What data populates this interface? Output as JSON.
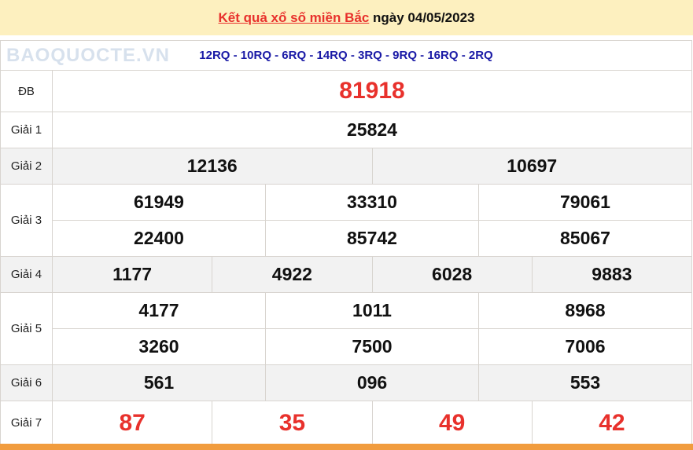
{
  "header": {
    "title_link": "Kết quả xổ số miền Bắc",
    "title_rest": " ngày 04/05/2023"
  },
  "codes": "12RQ - 10RQ - 6RQ - 14RQ - 3RQ - 9RQ - 16RQ - 2RQ",
  "prizes": {
    "db": {
      "label": "ĐB",
      "values": [
        "81918"
      ]
    },
    "g1": {
      "label": "Giải 1",
      "values": [
        "25824"
      ]
    },
    "g2": {
      "label": "Giải 2",
      "values": [
        "12136",
        "10697"
      ]
    },
    "g3": {
      "label": "Giải 3",
      "values": [
        "61949",
        "33310",
        "79061",
        "22400",
        "85742",
        "85067"
      ]
    },
    "g4": {
      "label": "Giải 4",
      "values": [
        "1177",
        "4922",
        "6028",
        "9883"
      ]
    },
    "g5": {
      "label": "Giải 5",
      "values": [
        "4177",
        "1011",
        "8968",
        "3260",
        "7500",
        "7006"
      ]
    },
    "g6": {
      "label": "Giải 6",
      "values": [
        "561",
        "096",
        "553"
      ]
    },
    "g7": {
      "label": "Giải 7",
      "values": [
        "87",
        "35",
        "49",
        "42"
      ]
    }
  },
  "watermark": "BAOQUOCTE.VN",
  "colors": {
    "accent": "#e8312c",
    "codes": "#1a1aa6",
    "header_bg": "#fdf0bf",
    "footer_bar": "#f19c3e"
  }
}
